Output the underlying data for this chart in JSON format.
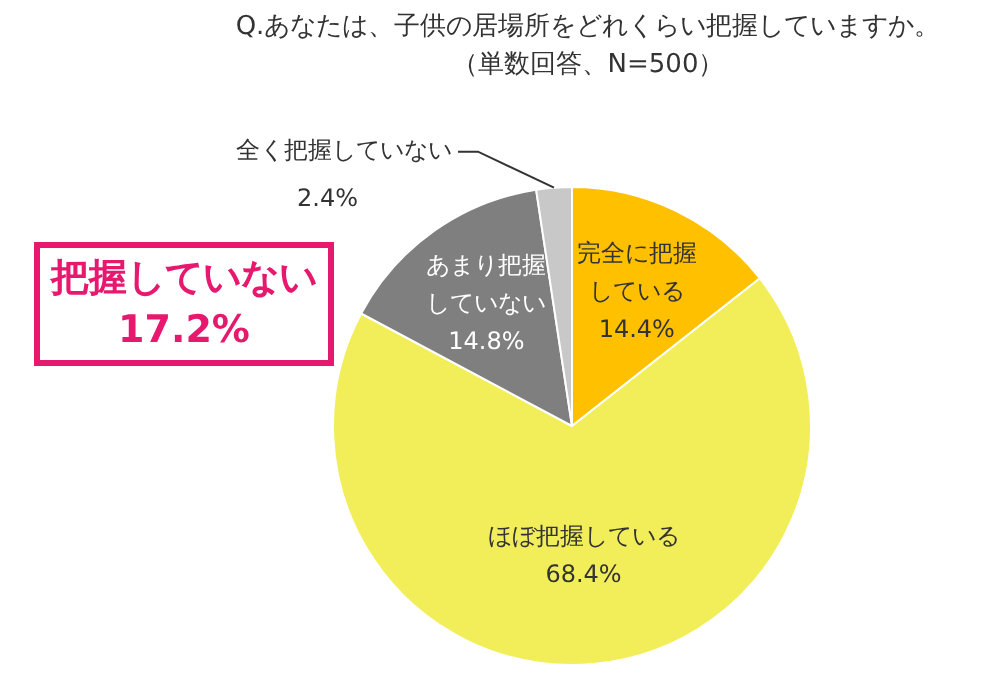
{
  "chart_data": {
    "type": "pie",
    "title": "Q.あなたは、子供の居場所をどれくらい把握していますか。",
    "subtitle": "（単数回答、N=500）",
    "categories": [
      "完全に把握している",
      "ほぼ把握している",
      "あまり把握していない",
      "全く把握していない"
    ],
    "values": [
      14.4,
      68.4,
      14.8,
      2.4
    ],
    "value_labels": [
      "14.4%",
      "68.4%",
      "14.8%",
      "2.4%"
    ],
    "colors": [
      "#ffc000",
      "#f2ee5a",
      "#7f7f7f",
      "#c8c8c8"
    ],
    "annotations": [
      "把握していない 17.2%"
    ],
    "legend": false
  }
}
